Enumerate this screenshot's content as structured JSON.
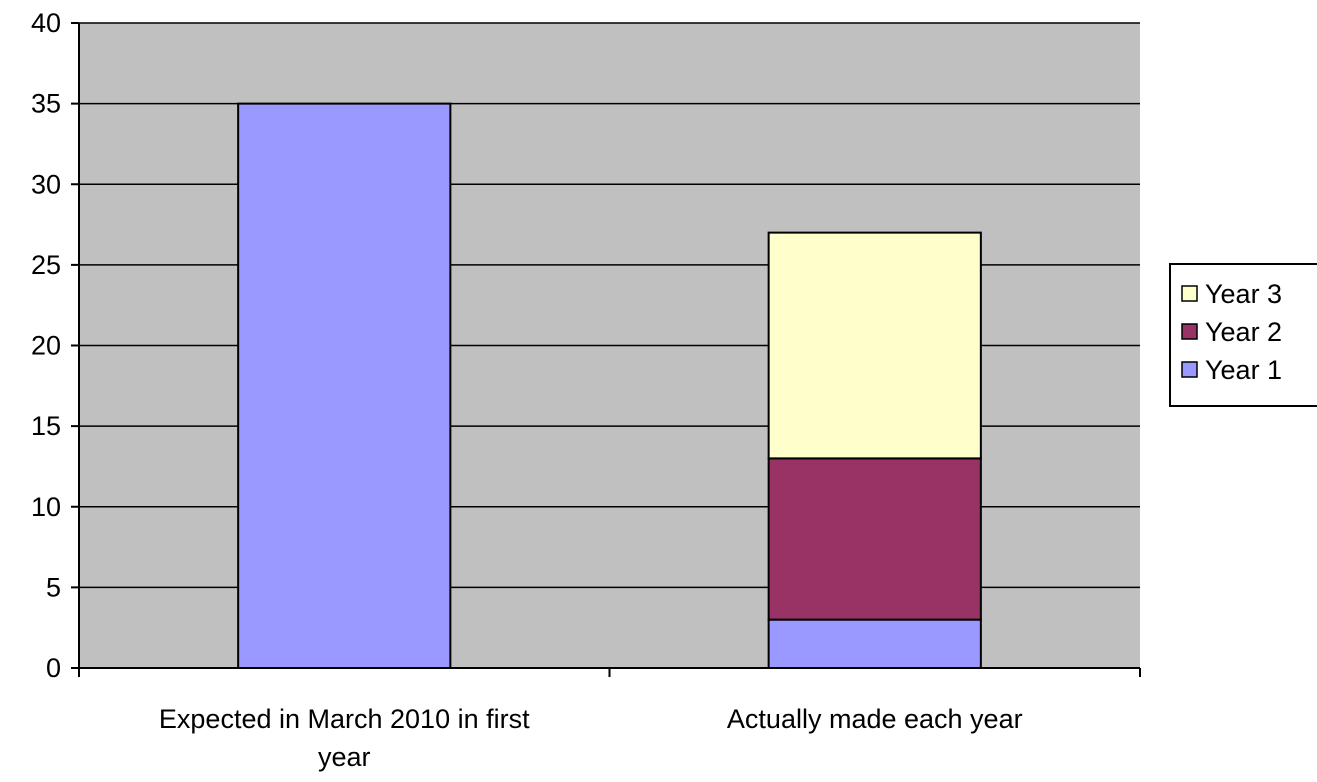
{
  "chart_data": {
    "type": "bar",
    "stacked": true,
    "title": "",
    "xlabel": "",
    "ylabel": "",
    "ylim": [
      0,
      40
    ],
    "yticks": [
      "0",
      "5",
      "10",
      "15",
      "20",
      "25",
      "30",
      "35",
      "40"
    ],
    "categories": [
      [
        "Expected in March 2010 in first",
        "year"
      ],
      [
        "Actually made each year"
      ]
    ],
    "series": [
      {
        "name": "Year 1",
        "color": "#9999ff",
        "values": [
          35,
          3
        ]
      },
      {
        "name": "Year 2",
        "color": "#993366",
        "values": [
          0,
          10
        ]
      },
      {
        "name": "Year 3",
        "color": "#ffffcc",
        "values": [
          0,
          14
        ]
      }
    ],
    "legend_order": [
      "Year 3",
      "Year 2",
      "Year 1"
    ],
    "legend_position": "right",
    "plot_background": "#c0c0c0",
    "grid": true
  }
}
